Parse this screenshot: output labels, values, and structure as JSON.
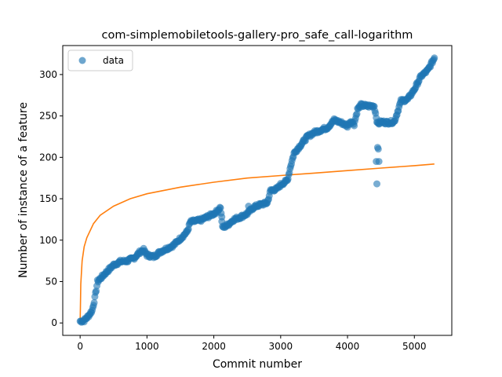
{
  "chart_data": {
    "type": "scatter",
    "title": "com-simplemobiletools-gallery-pro_safe_call-logarithm",
    "xlabel": "Commit number",
    "ylabel": "Number of instance of a feature",
    "xlim": [
      -260,
      5560
    ],
    "ylim": [
      -15,
      335
    ],
    "xticks": [
      0,
      1000,
      2000,
      3000,
      4000,
      5000
    ],
    "yticks": [
      0,
      50,
      100,
      150,
      200,
      250,
      300
    ],
    "grid": false,
    "legend": {
      "placement": "top-left",
      "entries": [
        {
          "label": "data"
        }
      ]
    },
    "colors": {
      "data": "#1f77b4",
      "fit": "#ff7f0e"
    },
    "series": [
      {
        "name": "data",
        "kind": "scatter",
        "trend": [
          [
            0,
            2
          ],
          [
            60,
            3
          ],
          [
            120,
            8
          ],
          [
            180,
            15
          ],
          [
            220,
            30
          ],
          [
            260,
            50
          ],
          [
            330,
            56
          ],
          [
            400,
            62
          ],
          [
            500,
            70
          ],
          [
            600,
            74
          ],
          [
            700,
            75
          ],
          [
            800,
            78
          ],
          [
            900,
            86
          ],
          [
            950,
            88
          ],
          [
            1000,
            82
          ],
          [
            1100,
            80
          ],
          [
            1200,
            86
          ],
          [
            1300,
            90
          ],
          [
            1400,
            94
          ],
          [
            1500,
            102
          ],
          [
            1600,
            110
          ],
          [
            1650,
            122
          ],
          [
            1800,
            124
          ],
          [
            1900,
            128
          ],
          [
            2000,
            132
          ],
          [
            2050,
            135
          ],
          [
            2100,
            140
          ],
          [
            2130,
            115
          ],
          [
            2200,
            118
          ],
          [
            2300,
            125
          ],
          [
            2400,
            128
          ],
          [
            2500,
            132
          ],
          [
            2600,
            140
          ],
          [
            2700,
            143
          ],
          [
            2800,
            145
          ],
          [
            2850,
            160
          ],
          [
            2950,
            162
          ],
          [
            3000,
            167
          ],
          [
            3100,
            172
          ],
          [
            3150,
            190
          ],
          [
            3200,
            205
          ],
          [
            3300,
            215
          ],
          [
            3400,
            225
          ],
          [
            3500,
            230
          ],
          [
            3600,
            233
          ],
          [
            3700,
            236
          ],
          [
            3800,
            245
          ],
          [
            3900,
            242
          ],
          [
            4000,
            238
          ],
          [
            4050,
            244
          ],
          [
            4100,
            240
          ],
          [
            4150,
            258
          ],
          [
            4200,
            263
          ],
          [
            4300,
            262
          ],
          [
            4400,
            262
          ],
          [
            4450,
            240
          ],
          [
            4500,
            243
          ],
          [
            4600,
            242
          ],
          [
            4700,
            243
          ],
          [
            4800,
            268
          ],
          [
            4900,
            270
          ],
          [
            5000,
            282
          ],
          [
            5100,
            298
          ],
          [
            5200,
            305
          ],
          [
            5300,
            320
          ]
        ],
        "outliers": [
          [
            2120,
            128
          ],
          [
            2520,
            141
          ],
          [
            4430,
            195
          ],
          [
            4440,
            168
          ],
          [
            4450,
            212
          ],
          [
            4460,
            210
          ],
          [
            4470,
            195
          ]
        ]
      },
      {
        "name": "fit",
        "kind": "line",
        "x": [
          0,
          10,
          30,
          60,
          100,
          200,
          300,
          500,
          750,
          1000,
          1500,
          2000,
          2500,
          3000,
          3500,
          4000,
          4500,
          5000,
          5300
        ],
        "y": [
          1,
          47,
          75,
          92,
          103,
          120,
          130,
          141,
          150,
          156,
          164,
          170,
          175,
          178,
          181,
          184,
          187,
          190,
          192
        ]
      }
    ]
  }
}
